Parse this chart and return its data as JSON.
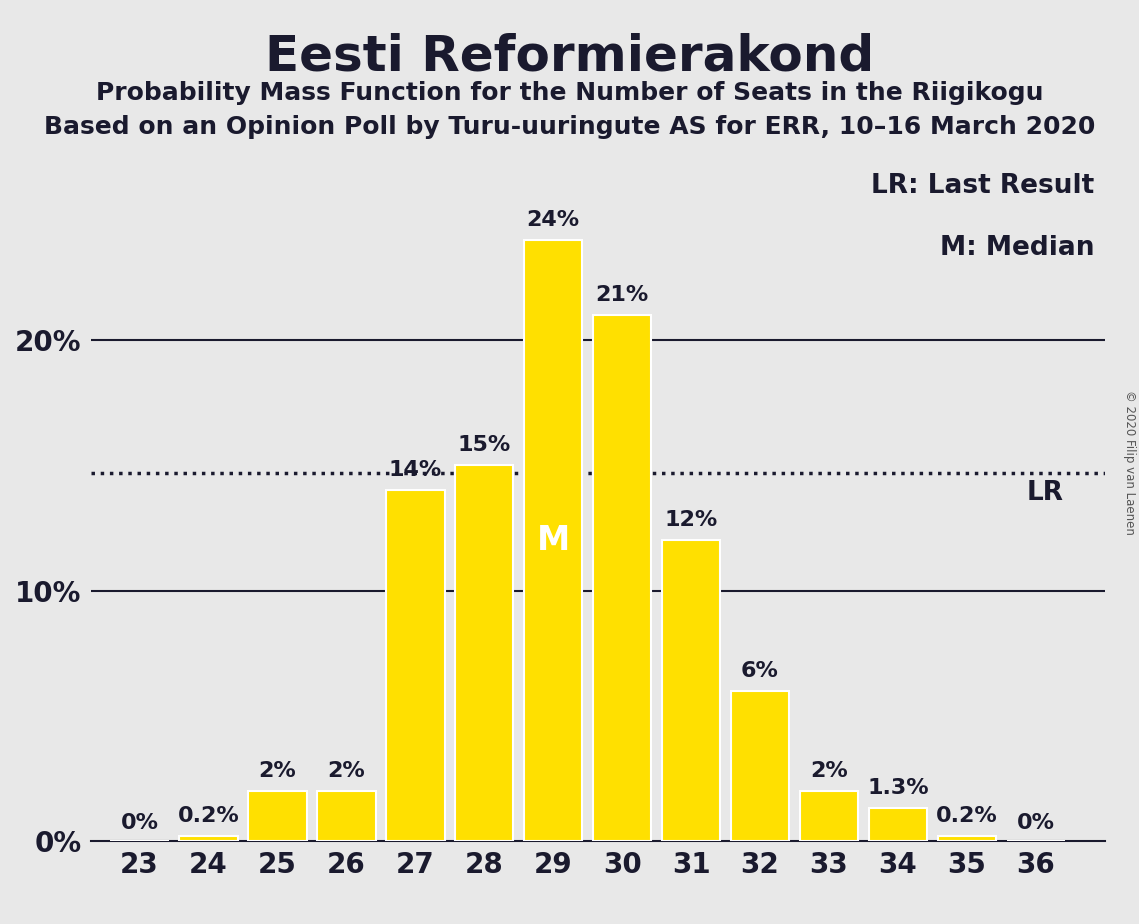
{
  "title": "Eesti Reformierakond",
  "subtitle1": "Probability Mass Function for the Number of Seats in the Riigikogu",
  "subtitle2": "Based on an Opinion Poll by Turu-uuringute AS for ERR, 10–16 March 2020",
  "copyright": "© 2020 Filip van Laenen",
  "seats": [
    23,
    24,
    25,
    26,
    27,
    28,
    29,
    30,
    31,
    32,
    33,
    34,
    35,
    36
  ],
  "probabilities": [
    0.0,
    0.2,
    2.0,
    2.0,
    14.0,
    15.0,
    24.0,
    21.0,
    12.0,
    6.0,
    2.0,
    1.3,
    0.2,
    0.0
  ],
  "bar_color": "#FFE000",
  "bar_edge_color": "#FFFFFF",
  "background_color": "#E8E8E8",
  "text_color": "#1a1a2e",
  "median_bar_label_color": "#FFFFFF",
  "median_seat": 29,
  "lr_value": 14.7,
  "legend_lr": "LR: Last Result",
  "legend_m": "M: Median",
  "yticks": [
    0,
    10,
    20
  ],
  "ytick_labels": [
    "0%",
    "10%",
    "20%"
  ],
  "ylim_max": 27.5,
  "dotted_line_color": "#1a1a2e",
  "solid_line_color": "#1a1a2e",
  "title_fontsize": 36,
  "subtitle_fontsize": 18,
  "bar_label_fontsize": 16,
  "axis_fontsize": 20,
  "legend_fontsize": 19,
  "m_fontsize": 24
}
